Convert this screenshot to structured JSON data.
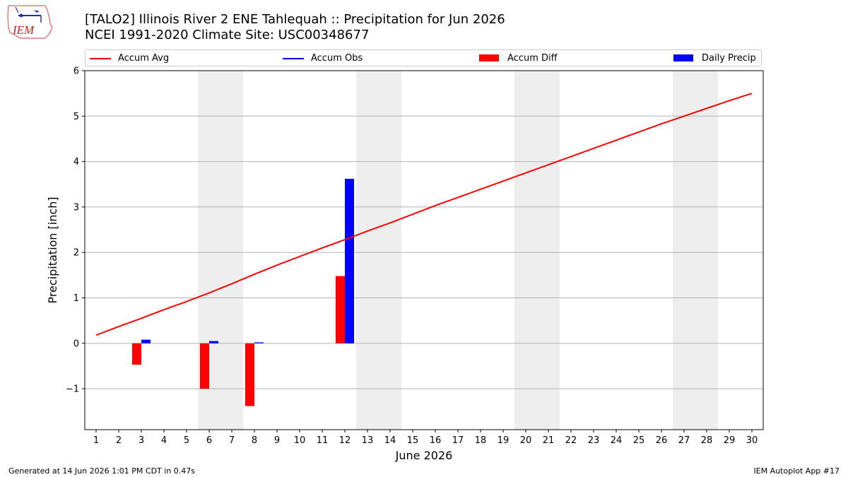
{
  "header": {
    "title_line1": "[TALO2] Illinois River 2 ENE Tahlequah :: Precipitation for Jun 2026",
    "title_line2": "NCEI 1991-2020 Climate Site: USC00348677",
    "logo_text": "IEM"
  },
  "footer": {
    "left": "Generated at 14 Jun 2026 1:01 PM CDT in 0.47s",
    "right": "IEM Autoplot App #17"
  },
  "chart_data": {
    "type": "bar",
    "xlabel": "June 2026",
    "ylabel": "Precipitation [inch]",
    "ylim": [
      -1.9,
      6.0
    ],
    "yticks": [
      -1,
      0,
      1,
      2,
      3,
      4,
      5,
      6
    ],
    "ytick_labels": [
      "−1",
      "0",
      "1",
      "2",
      "3",
      "4",
      "5",
      "6"
    ],
    "xlim": [
      0.5,
      30.5
    ],
    "days": [
      1,
      2,
      3,
      4,
      5,
      6,
      7,
      8,
      9,
      10,
      11,
      12,
      13,
      14,
      15,
      16,
      17,
      18,
      19,
      20,
      21,
      22,
      23,
      24,
      25,
      26,
      27,
      28,
      29,
      30
    ],
    "grid": "horizontal",
    "legend_placement": "top",
    "weekend_shading": [
      [
        6,
        7
      ],
      [
        13,
        14
      ],
      [
        20,
        21
      ],
      [
        27,
        28
      ]
    ],
    "series": [
      {
        "name": "Accum Avg",
        "kind": "line",
        "color": "#ff0000",
        "x": [
          1,
          2,
          3,
          4,
          5,
          6,
          7,
          8,
          9,
          10,
          11,
          12,
          13,
          14,
          15,
          16,
          17,
          18,
          19,
          20,
          21,
          22,
          23,
          24,
          25,
          26,
          27,
          28,
          29,
          30
        ],
        "values": [
          0.18,
          0.37,
          0.55,
          0.74,
          0.92,
          1.11,
          1.31,
          1.52,
          1.72,
          1.91,
          2.1,
          2.28,
          2.47,
          2.65,
          2.84,
          3.03,
          3.21,
          3.39,
          3.57,
          3.75,
          3.93,
          4.11,
          4.29,
          4.47,
          4.65,
          4.83,
          5.0,
          5.17,
          5.34,
          5.5
        ]
      },
      {
        "name": "Accum Obs",
        "kind": "line",
        "color": "#0000ff",
        "x": [],
        "values": []
      },
      {
        "name": "Accum Diff",
        "kind": "bar",
        "color": "#ff0000",
        "x": [
          3,
          6,
          8,
          12
        ],
        "values": [
          -0.47,
          -1.0,
          -1.38,
          1.48
        ]
      },
      {
        "name": "Daily Precip",
        "kind": "bar",
        "color": "#0000ff",
        "x": [
          3,
          6,
          8,
          12
        ],
        "values": [
          0.08,
          0.05,
          0.02,
          3.62
        ]
      }
    ]
  }
}
